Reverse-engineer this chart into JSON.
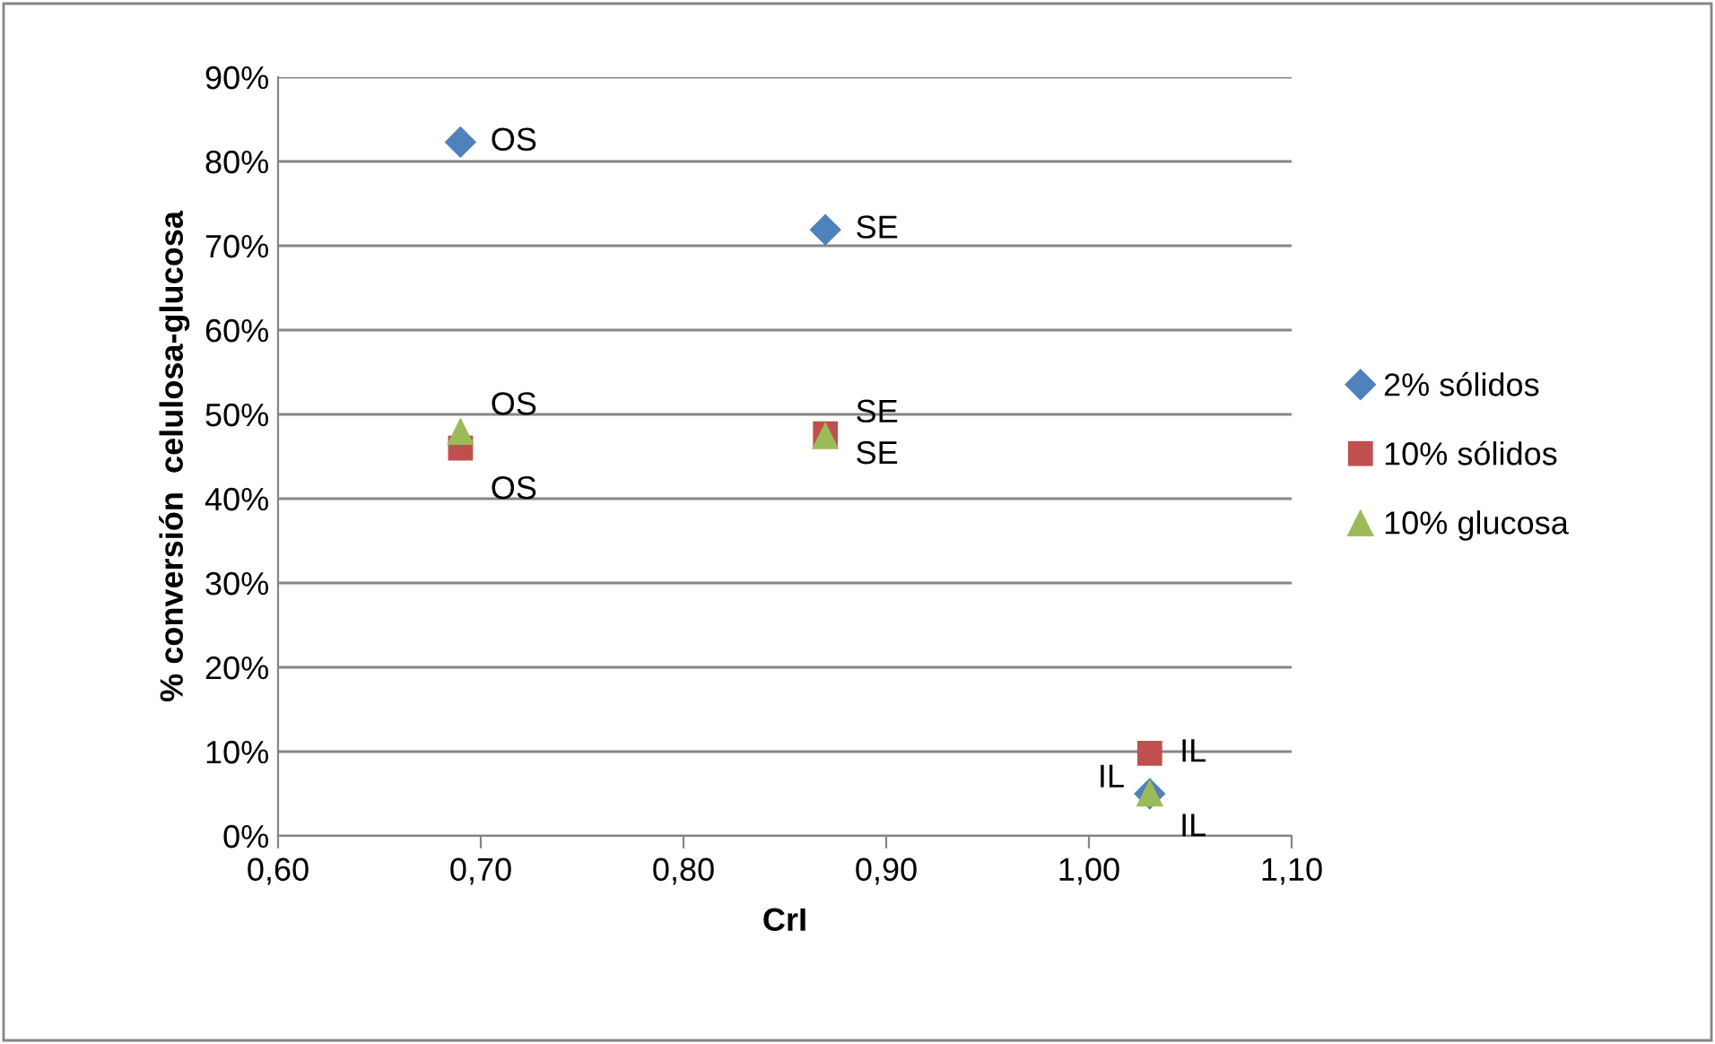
{
  "chart_data": {
    "type": "scatter",
    "xlabel": "CrI",
    "ylabel": "% conversión  celulosa-glucosa",
    "x": [
      0.69,
      0.87,
      1.03
    ],
    "series": [
      {
        "name": "2% sólidos",
        "color": "#4f81bd",
        "marker": "diamond",
        "values": [
          82.3,
          71.9,
          5
        ],
        "value_labels": [
          "OS",
          "SE",
          "IL"
        ]
      },
      {
        "name": "10% sólidos",
        "color": "#c0504d",
        "marker": "square",
        "values": [
          46,
          47.7,
          9.8
        ],
        "value_labels": [
          "OS",
          "SE",
          "IL"
        ]
      },
      {
        "name": "10% glucosa",
        "color": "#9bbb59",
        "marker": "triangle",
        "values": [
          48,
          47.5,
          5.1
        ],
        "value_labels": [
          "OS",
          "SE",
          "IL"
        ]
      }
    ],
    "xlim": [
      0.6,
      1.1
    ],
    "xticks": [
      {
        "value": 0.6,
        "label": "0,60"
      },
      {
        "value": 0.7,
        "label": "0,70"
      },
      {
        "value": 0.8,
        "label": "0,80"
      },
      {
        "value": 0.9,
        "label": "0,90"
      },
      {
        "value": 1.0,
        "label": "1,00"
      },
      {
        "value": 1.1,
        "label": "1,10"
      }
    ],
    "ylim": [
      0,
      90
    ],
    "yticks": [
      {
        "value": 0,
        "label": "0%"
      },
      {
        "value": 10,
        "label": "10%"
      },
      {
        "value": 20,
        "label": "20%"
      },
      {
        "value": 30,
        "label": "30%"
      },
      {
        "value": 40,
        "label": "40%"
      },
      {
        "value": 50,
        "label": "50%"
      },
      {
        "value": 60,
        "label": "60%"
      },
      {
        "value": 70,
        "label": "70%"
      },
      {
        "value": 80,
        "label": "80%"
      },
      {
        "value": 90,
        "label": "90%"
      }
    ],
    "grid": "y",
    "legend": "right"
  }
}
